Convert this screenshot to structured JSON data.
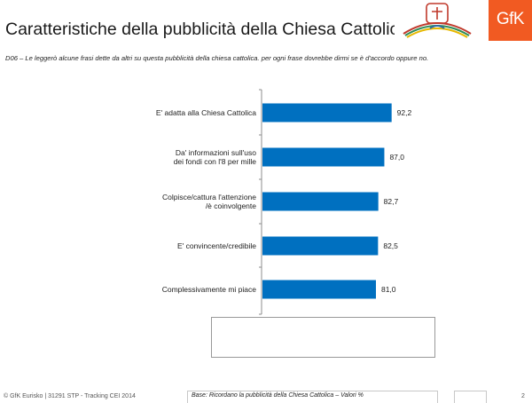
{
  "header": {
    "title": "Caratteristiche della pubblicità della Chiesa Cattolica",
    "question": "D06 – Le leggerò alcune frasi dette da altri su questa pubblicità della chiesa cattolica. per ogni frase dovrebbe dirmi se è d'accordo oppure no."
  },
  "logos": {
    "partner": "cei-logo",
    "brand": "GfK"
  },
  "chart_data": {
    "type": "bar",
    "orientation": "horizontal",
    "categories": [
      [
        "E' adatta alla Chiesa Cattolica"
      ],
      [
        "Da' informazioni sull'uso",
        "dei fondi con l'8 per mille"
      ],
      [
        "Colpisce/cattura l'attenzione",
        "/è coinvolgente"
      ],
      [
        "E' convincente/credibile"
      ],
      [
        "Complessivamente mi piace"
      ]
    ],
    "values": [
      92.2,
      87.0,
      82.7,
      82.5,
      81.0
    ],
    "value_labels": [
      "92,2",
      "87,0",
      "82,7",
      "82,5",
      "81,0"
    ],
    "xlim": [
      0,
      100
    ],
    "bar_color": "#0070c0"
  },
  "footer": {
    "left": "© GfK Eurisko | 31291 STP - Tracking CEI 2014",
    "base": "Base: Ricordano la pubblicità della Chiesa Cattolica – Valori %",
    "page": "2"
  }
}
